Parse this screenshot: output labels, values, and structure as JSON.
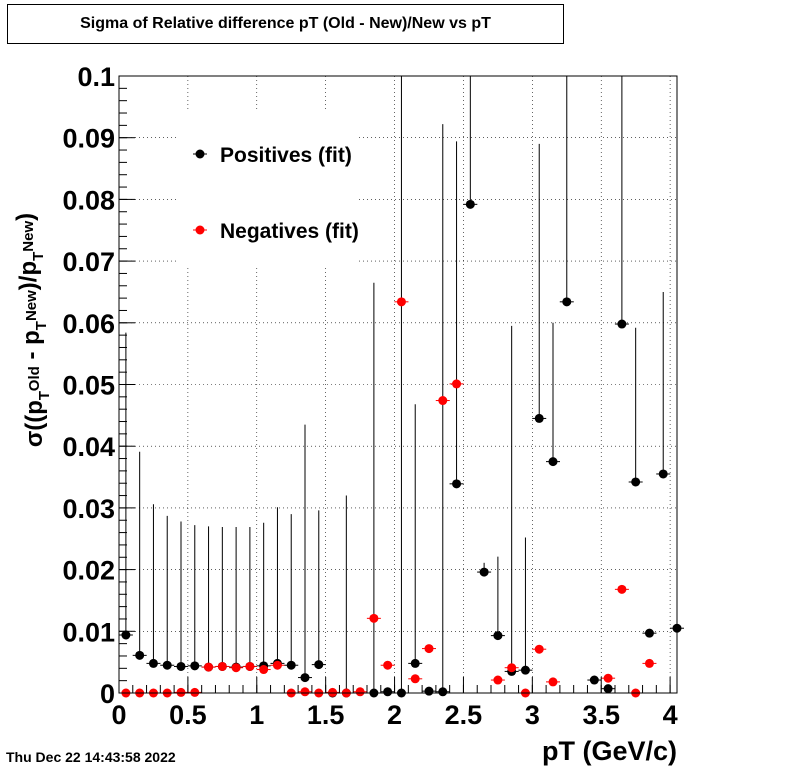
{
  "title": "Sigma of Relative difference pT (Old - New)/New vs pT",
  "timestamp": "Thu Dec 22 14:43:58 2022",
  "chart_data": {
    "type": "scatter",
    "xlabel": "pT (GeV/c)",
    "ylabel": "σ((p_T^Old - p_T^New)/p_T^New)",
    "xlim": [
      0,
      4.05
    ],
    "ylim": [
      0,
      0.1
    ],
    "grid": true,
    "legend_position": "top-left",
    "x_ticks": [
      "0",
      "0.5",
      "1",
      "1.5",
      "2",
      "2.5",
      "3",
      "3.5",
      "4"
    ],
    "y_ticks": [
      "0",
      "0.01",
      "0.02",
      "0.03",
      "0.04",
      "0.05",
      "0.06",
      "0.07",
      "0.08",
      "0.09",
      "0.1"
    ],
    "series": [
      {
        "name": "Positives (fit)",
        "color": "#000000",
        "points": [
          {
            "x": 0.05,
            "y": 0.0094,
            "err": 0.049
          },
          {
            "x": 0.15,
            "y": 0.0061,
            "err": 0.033
          },
          {
            "x": 0.25,
            "y": 0.0048,
            "err": 0.0258
          },
          {
            "x": 0.35,
            "y": 0.0045,
            "err": 0.0242
          },
          {
            "x": 0.45,
            "y": 0.0043,
            "err": 0.0235
          },
          {
            "x": 0.55,
            "y": 0.0044,
            "err": 0.0228
          },
          {
            "x": 0.65,
            "y": 0.0042,
            "err": 0.0228
          },
          {
            "x": 0.75,
            "y": 0.0043,
            "err": 0.0226
          },
          {
            "x": 0.85,
            "y": 0.0042,
            "err": 0.0227
          },
          {
            "x": 0.95,
            "y": 0.0043,
            "err": 0.0226
          },
          {
            "x": 1.05,
            "y": 0.0044,
            "err": 0.0232
          },
          {
            "x": 1.15,
            "y": 0.0048,
            "err": 0.0253
          },
          {
            "x": 1.25,
            "y": 0.0045,
            "err": 0.0245
          },
          {
            "x": 1.35,
            "y": 0.0025,
            "err": 0.041
          },
          {
            "x": 1.45,
            "y": 0.0046,
            "err": 0.025
          },
          {
            "x": 1.55,
            "y": 0.0,
            "err": 0.0
          },
          {
            "x": 1.65,
            "y": 0.0,
            "err": 0.032
          },
          {
            "x": 1.85,
            "y": 0.0,
            "err": 0.0665
          },
          {
            "x": 1.95,
            "y": 0.0002,
            "err": 0.0
          },
          {
            "x": 2.05,
            "y": 0.0,
            "err": 0.13
          },
          {
            "x": 2.15,
            "y": 0.0048,
            "err": 0.042
          },
          {
            "x": 2.25,
            "y": 0.0003,
            "err": 0.0
          },
          {
            "x": 2.35,
            "y": 0.0002,
            "err": 0.092
          },
          {
            "x": 2.45,
            "y": 0.0339,
            "err": 0.0555
          },
          {
            "x": 2.55,
            "y": 0.0792,
            "err": 0.07
          },
          {
            "x": 2.65,
            "y": 0.0196,
            "err": 0.0015
          },
          {
            "x": 2.75,
            "y": 0.0093,
            "err": 0.0128
          },
          {
            "x": 2.85,
            "y": 0.0035,
            "err": 0.056
          },
          {
            "x": 2.95,
            "y": 0.0037,
            "err": 0.0215
          },
          {
            "x": 3.05,
            "y": 0.0445,
            "err": 0.0445
          },
          {
            "x": 3.15,
            "y": 0.0375,
            "err": 0.0225
          },
          {
            "x": 3.25,
            "y": 0.0634,
            "err": 0.041
          },
          {
            "x": 3.45,
            "y": 0.0021,
            "err": 0.0
          },
          {
            "x": 3.55,
            "y": 0.0007,
            "err": 0.0
          },
          {
            "x": 3.65,
            "y": 0.0598,
            "err": 0.045
          },
          {
            "x": 3.75,
            "y": 0.0342,
            "err": 0.025
          },
          {
            "x": 3.85,
            "y": 0.0097,
            "err": 0.0
          },
          {
            "x": 3.95,
            "y": 0.0355,
            "err": 0.0295
          },
          {
            "x": 4.05,
            "y": 0.0105,
            "err": 0.0
          }
        ]
      },
      {
        "name": "Negatives (fit)",
        "color": "#ff0000",
        "points": [
          {
            "x": 0.05,
            "y": 0.0,
            "err": 0.0
          },
          {
            "x": 0.15,
            "y": 0.0,
            "err": 0.0
          },
          {
            "x": 0.25,
            "y": 0.0,
            "err": 0.0
          },
          {
            "x": 0.35,
            "y": 0.0,
            "err": 0.0
          },
          {
            "x": 0.45,
            "y": 0.0001,
            "err": 0.0
          },
          {
            "x": 0.55,
            "y": 0.0001,
            "err": 0.0
          },
          {
            "x": 0.65,
            "y": 0.0042,
            "err": 0.0
          },
          {
            "x": 0.75,
            "y": 0.0043,
            "err": 0.0
          },
          {
            "x": 0.85,
            "y": 0.0041,
            "err": 0.0
          },
          {
            "x": 0.95,
            "y": 0.0043,
            "err": 0.0
          },
          {
            "x": 1.05,
            "y": 0.0038,
            "err": 0.0
          },
          {
            "x": 1.15,
            "y": 0.0045,
            "err": 0.0
          },
          {
            "x": 1.25,
            "y": 0.0,
            "err": 0.0
          },
          {
            "x": 1.35,
            "y": 0.0002,
            "err": 0.0
          },
          {
            "x": 1.45,
            "y": 0.0,
            "err": 0.0
          },
          {
            "x": 1.55,
            "y": 0.0001,
            "err": 0.0
          },
          {
            "x": 1.65,
            "y": 0.0,
            "err": 0.0
          },
          {
            "x": 1.75,
            "y": 0.0002,
            "err": 0.0
          },
          {
            "x": 1.85,
            "y": 0.0121,
            "err": 0.0
          },
          {
            "x": 1.95,
            "y": 0.0045,
            "err": 0.0
          },
          {
            "x": 2.05,
            "y": 0.0634,
            "err": 0.0
          },
          {
            "x": 2.15,
            "y": 0.0023,
            "err": 0.0
          },
          {
            "x": 2.25,
            "y": 0.0072,
            "err": 0.0
          },
          {
            "x": 2.35,
            "y": 0.0474,
            "err": 0.0
          },
          {
            "x": 2.45,
            "y": 0.0501,
            "err": 0.0
          },
          {
            "x": 2.75,
            "y": 0.0021,
            "err": 0.0
          },
          {
            "x": 2.85,
            "y": 0.0041,
            "err": 0.0
          },
          {
            "x": 2.95,
            "y": 0.0,
            "err": 0.0
          },
          {
            "x": 3.05,
            "y": 0.0071,
            "err": 0.0
          },
          {
            "x": 3.15,
            "y": 0.0018,
            "err": 0.0
          },
          {
            "x": 3.55,
            "y": 0.0024,
            "err": 0.0
          },
          {
            "x": 3.65,
            "y": 0.0168,
            "err": 0.0
          },
          {
            "x": 3.75,
            "y": 0.0,
            "err": 0.0
          },
          {
            "x": 3.85,
            "y": 0.0048,
            "err": 0.0
          }
        ]
      }
    ]
  }
}
